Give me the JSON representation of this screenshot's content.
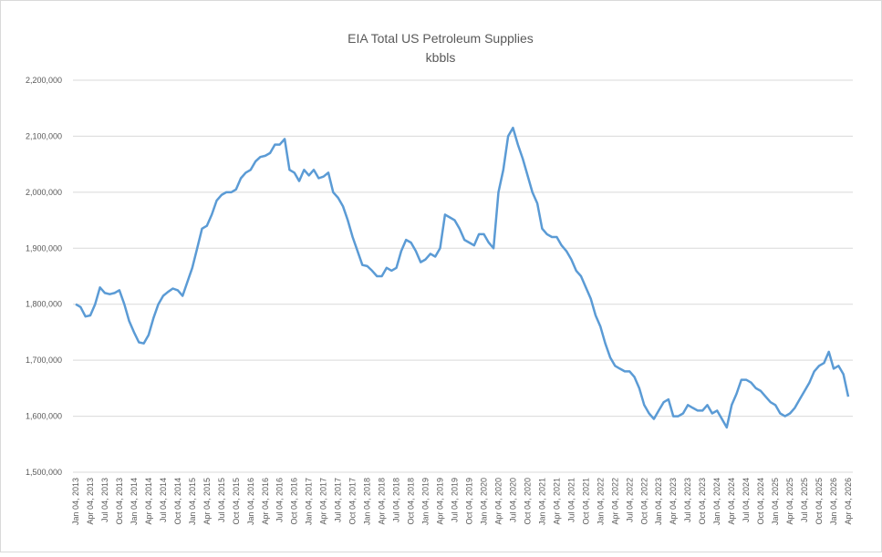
{
  "chart_data": {
    "type": "line",
    "title": "EIA Total US Petroleum Supplies",
    "subtitle": "kbbls",
    "categories": [
      "Jan 04, 2013",
      null,
      null,
      "Apr 04, 2013",
      null,
      null,
      "Jul 04, 2013",
      null,
      null,
      "Oct 04, 2013",
      null,
      null,
      "Jan 04, 2014",
      null,
      null,
      "Apr 04, 2014",
      null,
      null,
      "Jul 04, 2014",
      null,
      null,
      "Oct 04, 2014",
      null,
      null,
      "Jan 04, 2015",
      null,
      null,
      "Apr 04, 2015",
      null,
      null,
      "Jul 04, 2015",
      null,
      null,
      "Oct 04, 2015",
      null,
      null,
      "Jan 04, 2016",
      null,
      null,
      "Apr 04, 2016",
      null,
      null,
      "Jul 04, 2016",
      null,
      null,
      "Oct 04, 2016",
      null,
      null,
      "Jan 04, 2017",
      null,
      null,
      "Apr 04, 2017",
      null,
      null,
      "Jul 04, 2017",
      null,
      null,
      "Oct 04, 2017",
      null,
      null,
      "Jan 04, 2018",
      null,
      null,
      "Apr 04, 2018",
      null,
      null,
      "Jul 04, 2018",
      null,
      null,
      "Oct 04, 2018",
      null,
      null,
      "Jan 04, 2019",
      null,
      null,
      "Apr 04, 2019",
      null,
      null,
      "Jul 04, 2019",
      null,
      null,
      "Oct 04, 2019",
      null,
      null,
      "Jan 04, 2020",
      null,
      null,
      "Apr 04, 2020",
      null,
      null,
      "Jul 04, 2020",
      null,
      null,
      "Oct 04, 2020",
      null,
      null,
      "Jan 04, 2021",
      null,
      null,
      "Apr 04, 2021",
      null,
      null,
      "Jul 04, 2021",
      null,
      null,
      "Oct 04, 2021",
      null,
      null,
      "Jan 04, 2022",
      null,
      null,
      "Apr 04, 2022",
      null,
      null,
      "Jul 04, 2022",
      null,
      null,
      "Oct 04, 2022",
      null,
      null,
      "Jan 04, 2023",
      null,
      null,
      "Apr 04, 2023",
      null,
      null,
      "Jul 04, 2023",
      null,
      null,
      "Oct 04, 2023",
      null,
      null,
      "Jan 04, 2024",
      null,
      null,
      "Apr 04, 2024",
      null,
      null,
      "Jul 04, 2024",
      null,
      null,
      "Oct 04, 2024",
      null,
      null,
      "Jan 04, 2025",
      null,
      null,
      "Apr 04, 2025",
      null,
      null,
      "Jul 04, 2025",
      null,
      null,
      "Oct 04, 2025",
      null,
      null,
      "Jan 04, 2026",
      null,
      null,
      "Apr 04, 2026"
    ],
    "series": [
      {
        "color": "#5b9bd5",
        "values": [
          1800000,
          1795000,
          1778000,
          1780000,
          1800000,
          1830000,
          1820000,
          1818000,
          1820000,
          1825000,
          1800000,
          1770000,
          1750000,
          1732000,
          1730000,
          1745000,
          1775000,
          1800000,
          1815000,
          1822000,
          1828000,
          1825000,
          1815000,
          1840000,
          1865000,
          1900000,
          1935000,
          1940000,
          1960000,
          1985000,
          1995000,
          2000000,
          2000000,
          2005000,
          2025000,
          2035000,
          2040000,
          2055000,
          2063000,
          2065000,
          2070000,
          2085000,
          2085000,
          2095000,
          2040000,
          2035000,
          2020000,
          2040000,
          2030000,
          2040000,
          2025000,
          2028000,
          2035000,
          2000000,
          1990000,
          1975000,
          1950000,
          1920000,
          1895000,
          1870000,
          1868000,
          1860000,
          1850000,
          1850000,
          1865000,
          1860000,
          1865000,
          1895000,
          1915000,
          1910000,
          1895000,
          1875000,
          1880000,
          1890000,
          1885000,
          1900000,
          1960000,
          1955000,
          1950000,
          1935000,
          1915000,
          1910000,
          1905000,
          1925000,
          1925000,
          1910000,
          1900000,
          2000000,
          2040000,
          2100000,
          2115000,
          2085000,
          2060000,
          2030000,
          2000000,
          1980000,
          1935000,
          1925000,
          1920000,
          1920000,
          1905000,
          1895000,
          1880000,
          1860000,
          1850000,
          1830000,
          1810000,
          1780000,
          1760000,
          1730000,
          1705000,
          1690000,
          1685000,
          1680000,
          1680000,
          1670000,
          1650000,
          1620000,
          1605000,
          1595000,
          1610000,
          1625000,
          1630000,
          1600000,
          1600000,
          1605000,
          1620000,
          1615000,
          1610000,
          1610000,
          1620000,
          1605000,
          1610000,
          1595000,
          1580000,
          1620000,
          1640000,
          1665000,
          1665000,
          1660000,
          1650000,
          1645000,
          1635000,
          1625000,
          1620000,
          1605000,
          1600000,
          1605000,
          1615000,
          1630000,
          1645000,
          1660000,
          1680000,
          1690000,
          1695000,
          1715000,
          1685000,
          1690000,
          1675000,
          1635000
        ]
      }
    ],
    "ylim": [
      1500000,
      2200000
    ],
    "yticks": [
      {
        "value": 1500000,
        "label": "1,500,000"
      },
      {
        "value": 1600000,
        "label": "1,600,000"
      },
      {
        "value": 1700000,
        "label": "1,700,000"
      },
      {
        "value": 1800000,
        "label": "1,800,000"
      },
      {
        "value": 1900000,
        "label": "1,900,000"
      },
      {
        "value": 2000000,
        "label": "2,000,000"
      },
      {
        "value": 2100000,
        "label": "2,100,000"
      },
      {
        "value": 2200000,
        "label": "2,200,000"
      }
    ],
    "grid": true
  }
}
